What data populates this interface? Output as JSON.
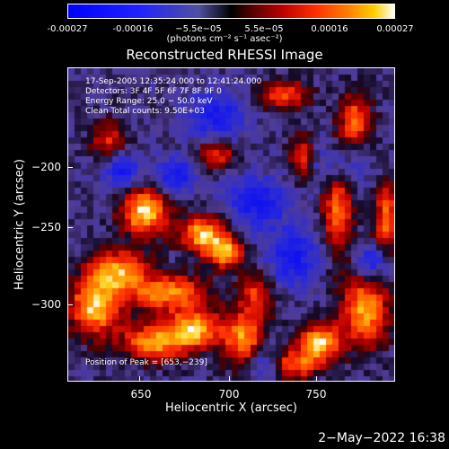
{
  "colorbar": {
    "ticks": [
      "-0.00027",
      "-0.00016",
      "−5.5e−05",
      "5.5e−05",
      "0.00016",
      "0.00027"
    ],
    "unit": "(photons cm⁻² s⁻¹ asec⁻²)",
    "gradient_colors": [
      "#0000ff",
      "#5050a0",
      "#000000",
      "#c00000",
      "#ff8000",
      "#ffffff"
    ]
  },
  "chart_data": {
    "type": "heatmap",
    "title": "Reconstructed RHESSI Image",
    "xlabel": "Heliocentric X (arcsec)",
    "ylabel": "Heliocentric Y (arcsec)",
    "xlim": [
      608,
      792
    ],
    "ylim": [
      -345,
      -172
    ],
    "xticks": [
      "650",
      "700",
      "750"
    ],
    "yticks": [
      "−200",
      "−250",
      "−300"
    ],
    "xtick_values": [
      650,
      700,
      750
    ],
    "ytick_values": [
      -200,
      -250,
      -300
    ],
    "value_range": [
      -0.00027,
      0.00027
    ],
    "peak": [
      653,
      -239
    ],
    "annotations": [
      "17-Sep-2005 12:35:24.000 to 12:41:24.000",
      "Detectors: 3F 4F 5F 6F 7F 8F 9F 0",
      "Energy Range: 25.0 − 50.0 keV",
      "Clean     Total counts: 9.50E+03"
    ],
    "peak_label": "Position of Peak = [653,−239]"
  },
  "footer": "2−May−2022 16:38"
}
